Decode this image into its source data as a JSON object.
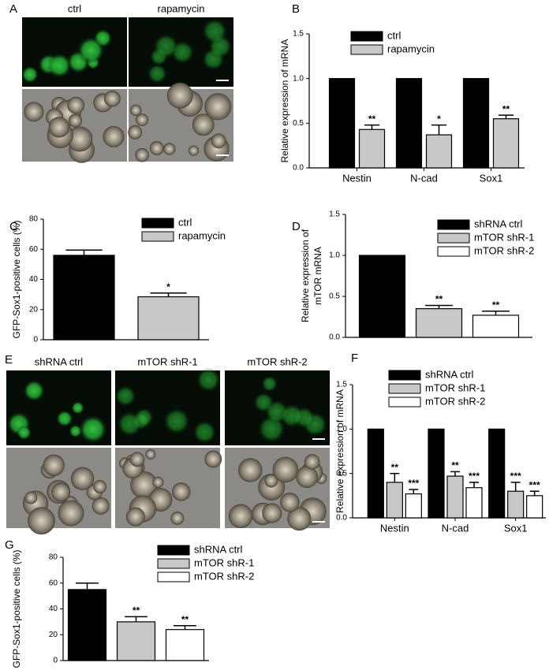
{
  "image_panels": [
    {
      "panel_label": "A",
      "column_labels": [
        "ctrl",
        "rapamycin"
      ]
    },
    {
      "panel_label": "E",
      "column_labels": [
        "shRNA ctrl",
        "mTOR shR-1",
        "mTOR shR-2"
      ]
    }
  ],
  "chart_data": [
    {
      "type": "bar",
      "panel_label": "B",
      "ylabel": [
        "Relative expression of mRNA"
      ],
      "categories": [
        "Nestin",
        "N-cad",
        "Sox1"
      ],
      "series": [
        {
          "name": "ctrl",
          "color": "#000000",
          "values": [
            1,
            1,
            1
          ],
          "errors": [
            null,
            null,
            null
          ],
          "annotations": [
            null,
            null,
            null
          ]
        },
        {
          "name": "rapamycin",
          "color": "#c8c8c8",
          "values": [
            0.43,
            0.37,
            0.55
          ],
          "errors": [
            0.05,
            0.11,
            0.04
          ],
          "annotations": [
            "**",
            "*",
            "**"
          ]
        }
      ],
      "ylim": [
        0,
        1.5
      ],
      "yticks": [
        {
          "value": 0,
          "label": "0.0"
        },
        0.5,
        {
          "value": 1,
          "label": "1.0"
        },
        1.5
      ]
    },
    {
      "type": "bar",
      "panel_label": "C",
      "ylabel": [
        "GFP-Sox1-positive cells (%)"
      ],
      "categories": [
        null
      ],
      "series": [
        {
          "name": "ctrl",
          "color": "#000000",
          "values": [
            56
          ],
          "errors": [
            3.5
          ],
          "annotations": [
            null
          ]
        },
        {
          "name": "rapamycin",
          "color": "#c8c8c8",
          "values": [
            28.5
          ],
          "errors": [
            2.5
          ],
          "annotations": [
            "*"
          ]
        }
      ],
      "ylim": [
        0,
        80
      ],
      "yticks": [
        0,
        20,
        40,
        60,
        80
      ]
    },
    {
      "type": "bar",
      "panel_label": "D",
      "ylabel": [
        "Relative expression of",
        "mTOR mRNA"
      ],
      "categories": [
        null
      ],
      "series": [
        {
          "name": "shRNA ctrl",
          "color": "#000000",
          "values": [
            1
          ],
          "errors": [
            null
          ],
          "annotations": [
            null
          ]
        },
        {
          "name": "mTOR shR-1",
          "color": "#c8c8c8",
          "values": [
            0.35
          ],
          "errors": [
            0.04
          ],
          "annotations": [
            "**"
          ]
        },
        {
          "name": "mTOR shR-2",
          "color": "#ffffff",
          "values": [
            0.27
          ],
          "errors": [
            0.05
          ],
          "annotations": [
            "**"
          ]
        }
      ],
      "ylim": [
        0,
        1.5
      ],
      "yticks": [
        {
          "value": 0,
          "label": "0.0"
        },
        0.5,
        {
          "value": 1,
          "label": "1.0"
        },
        1.5
      ]
    },
    {
      "type": "bar",
      "panel_label": "F",
      "ylabel": [
        "Relative expression of mRNA"
      ],
      "categories": [
        "Nestin",
        "N-cad",
        "Sox1"
      ],
      "series": [
        {
          "name": "shRNA ctrl",
          "color": "#000000",
          "values": [
            1,
            1,
            1
          ],
          "errors": [
            null,
            null,
            null
          ],
          "annotations": [
            null,
            null,
            null
          ]
        },
        {
          "name": "mTOR shR-1",
          "color": "#c8c8c8",
          "values": [
            0.4,
            0.47,
            0.3
          ],
          "errors": [
            0.1,
            0.05,
            0.1
          ],
          "annotations": [
            "**",
            "**",
            "***"
          ]
        },
        {
          "name": "mTOR shR-2",
          "color": "#ffffff",
          "values": [
            0.27,
            0.34,
            0.25
          ],
          "errors": [
            0.05,
            0.06,
            0.05
          ],
          "annotations": [
            "***",
            "***",
            "***"
          ]
        }
      ],
      "ylim": [
        0,
        1.5
      ],
      "yticks": [
        {
          "value": 0,
          "label": "0.0"
        },
        0.5,
        {
          "value": 1,
          "label": "1.0"
        },
        1.5
      ]
    },
    {
      "type": "bar",
      "panel_label": "G",
      "ylabel": [
        "GFP-Sox1-positive cells (%)"
      ],
      "categories": [
        null
      ],
      "series": [
        {
          "name": "shRNA ctrl",
          "color": "#000000",
          "values": [
            55
          ],
          "errors": [
            5
          ],
          "annotations": [
            null
          ]
        },
        {
          "name": "mTOR shR-1",
          "color": "#c8c8c8",
          "values": [
            30
          ],
          "errors": [
            4
          ],
          "annotations": [
            "**"
          ]
        },
        {
          "name": "mTOR shR-2",
          "color": "#ffffff",
          "values": [
            24
          ],
          "errors": [
            3
          ],
          "annotations": [
            "**"
          ]
        }
      ],
      "ylim": [
        0,
        80
      ],
      "yticks": [
        0,
        20,
        40,
        60,
        80
      ]
    }
  ]
}
